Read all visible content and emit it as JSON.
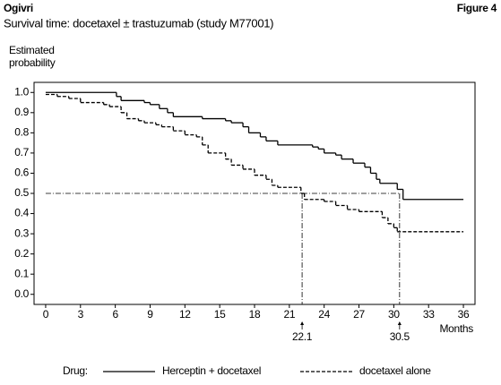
{
  "header": {
    "brand": "Ogivri",
    "figure": "Figure 4",
    "subtitle": "Survival time: docetaxel ± trastuzumab (study M77001)"
  },
  "chart_data": {
    "type": "step",
    "y_label": [
      "Estimated",
      "probability"
    ],
    "x_label": "Months",
    "legend_title": "Drug:",
    "xlim": [
      -1,
      37
    ],
    "ylim": [
      -0.05,
      1.05
    ],
    "xticks": [
      0,
      3,
      6,
      9,
      12,
      15,
      18,
      21,
      24,
      27,
      30,
      33,
      36
    ],
    "yticks": [
      {
        "value": 0,
        "label": "0.0"
      },
      0.1,
      0.2,
      0.3,
      0.4,
      0.5,
      0.6,
      0.7,
      0.8,
      0.9,
      {
        "value": 1,
        "label": "1.0"
      }
    ],
    "x_end": 36,
    "reference_y": 0.5,
    "medians": [
      22.1,
      30.5
    ],
    "series": [
      {
        "name": "Herceptin + docetaxel",
        "color": "#000000",
        "dash": "none",
        "x": [
          0,
          6.1,
          6.5,
          8.5,
          9,
          9.8,
          10.5,
          11,
          13.5,
          15.5,
          16,
          17,
          17.5,
          18.5,
          19,
          20,
          23,
          23.5,
          24,
          25,
          25.5,
          26.5,
          27.5,
          28,
          28.5,
          28.8,
          30.3,
          30.8
        ],
        "values": [
          1.0,
          0.98,
          0.96,
          0.95,
          0.94,
          0.92,
          0.9,
          0.88,
          0.87,
          0.86,
          0.85,
          0.83,
          0.8,
          0.78,
          0.76,
          0.74,
          0.73,
          0.72,
          0.7,
          0.69,
          0.67,
          0.65,
          0.63,
          0.6,
          0.57,
          0.55,
          0.52,
          0.47
        ]
      },
      {
        "name": "docetaxel alone",
        "color": "#000000",
        "dash": "4 2",
        "x": [
          0,
          1,
          2,
          3,
          5,
          5.5,
          6.5,
          7,
          8,
          8.5,
          9.5,
          10,
          11,
          12,
          13,
          13.5,
          14,
          15.5,
          16,
          17,
          18,
          19,
          19.5,
          20,
          22,
          22.3,
          24,
          25,
          26,
          27,
          29,
          29.5,
          30,
          30.3
        ],
        "values": [
          0.99,
          0.98,
          0.97,
          0.95,
          0.94,
          0.93,
          0.9,
          0.87,
          0.86,
          0.85,
          0.84,
          0.83,
          0.81,
          0.79,
          0.78,
          0.74,
          0.7,
          0.67,
          0.64,
          0.62,
          0.59,
          0.57,
          0.54,
          0.53,
          0.5,
          0.47,
          0.46,
          0.44,
          0.42,
          0.41,
          0.38,
          0.35,
          0.33,
          0.31
        ]
      }
    ]
  }
}
